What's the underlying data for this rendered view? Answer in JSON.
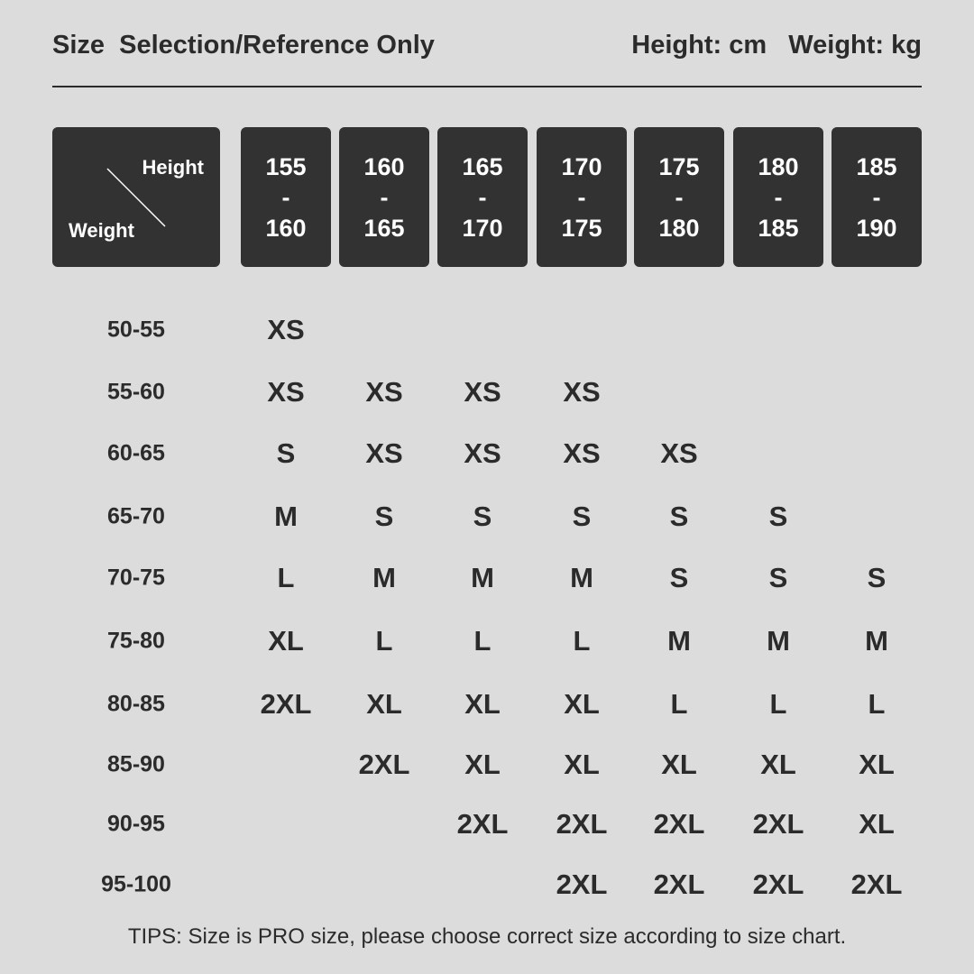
{
  "header": {
    "title": "Size  Selection/Reference Only",
    "units": "Height: cm   Weight: kg"
  },
  "corner": {
    "height_label": "Height",
    "weight_label": "Weight"
  },
  "heights": [
    [
      "155",
      "160"
    ],
    [
      "160",
      "165"
    ],
    [
      "165",
      "170"
    ],
    [
      "170",
      "175"
    ],
    [
      "175",
      "180"
    ],
    [
      "180",
      "185"
    ],
    [
      "185",
      "190"
    ]
  ],
  "weights": [
    "50-55",
    "55-60",
    "60-65",
    "65-70",
    "70-75",
    "75-80",
    "80-85",
    "85-90",
    "90-95",
    "95-100"
  ],
  "sizes": [
    [
      "XS",
      "",
      "",
      "",
      "",
      "",
      ""
    ],
    [
      "XS",
      "XS",
      "XS",
      "XS",
      "",
      "",
      ""
    ],
    [
      "S",
      "XS",
      "XS",
      "XS",
      "XS",
      "",
      ""
    ],
    [
      "M",
      "S",
      "S",
      "S",
      "S",
      "S",
      ""
    ],
    [
      "L",
      "M",
      "M",
      "M",
      "S",
      "S",
      "S"
    ],
    [
      "XL",
      "L",
      "L",
      "L",
      "M",
      "M",
      "M"
    ],
    [
      "2XL",
      "XL",
      "XL",
      "XL",
      "L",
      "L",
      "L"
    ],
    [
      "",
      "2XL",
      "XL",
      "XL",
      "XL",
      "XL",
      "XL"
    ],
    [
      "",
      "",
      "2XL",
      "2XL",
      "2XL",
      "2XL",
      "XL"
    ],
    [
      "",
      "",
      "",
      "2XL",
      "2XL",
      "2XL",
      "2XL"
    ]
  ],
  "tips": "TIPS: Size is PRO size, please choose correct size according to size chart."
}
